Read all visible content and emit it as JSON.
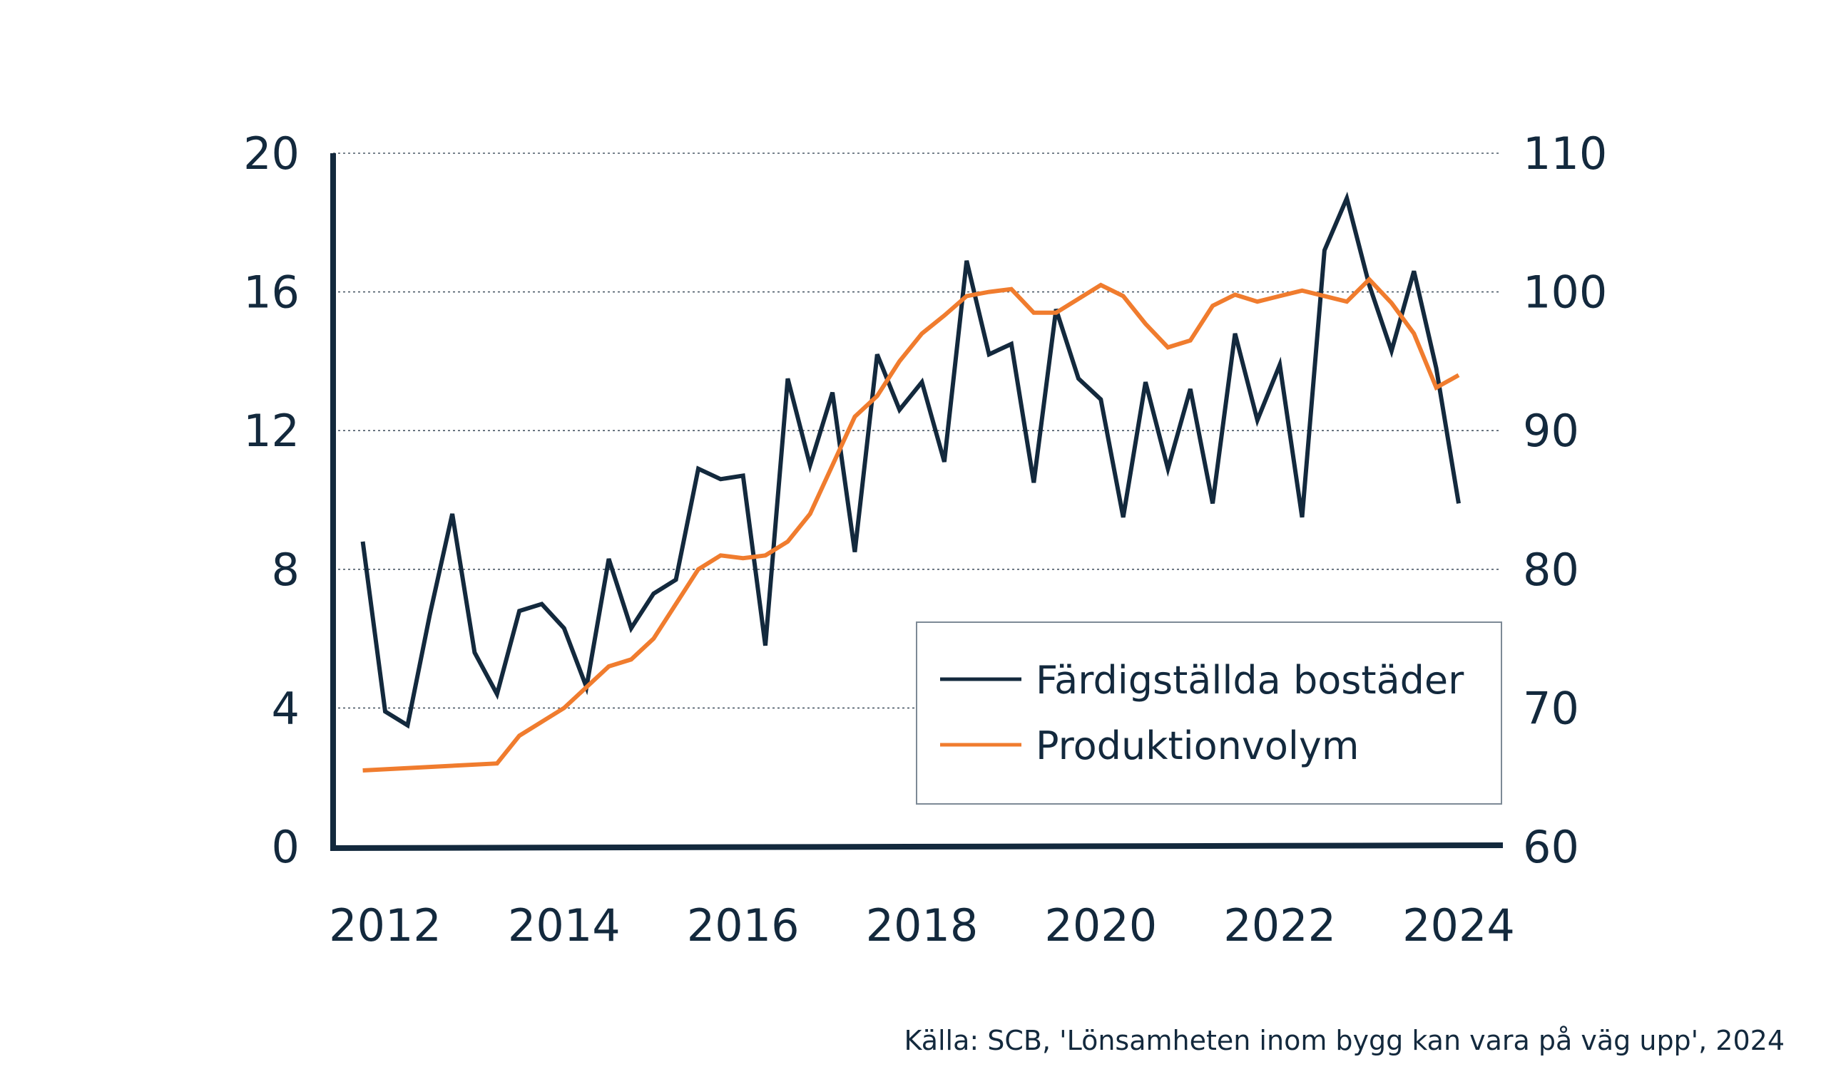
{
  "chart_data": {
    "type": "line",
    "x_ticks": [
      "2012",
      "2014",
      "2016",
      "2018",
      "2020",
      "2022",
      "2024"
    ],
    "y_left": {
      "min": 0,
      "max": 20,
      "ticks": [
        "0",
        "4",
        "8",
        "12",
        "16",
        "20"
      ]
    },
    "y_right": {
      "min": 60,
      "max": 110,
      "ticks": [
        "60",
        "70",
        "80",
        "90",
        "100",
        "110"
      ]
    },
    "grid": "horizontal-dotted",
    "legend_position": "bottom-right",
    "series": [
      {
        "name": "Färdigställda bostäder",
        "axis": "left",
        "color": "#13293d",
        "points": [
          [
            2011.75,
            8.8
          ],
          [
            2012.0,
            3.9
          ],
          [
            2012.25,
            3.5
          ],
          [
            2012.5,
            6.7
          ],
          [
            2012.75,
            9.6
          ],
          [
            2013.0,
            5.6
          ],
          [
            2013.25,
            4.4
          ],
          [
            2013.5,
            6.8
          ],
          [
            2013.75,
            7.0
          ],
          [
            2014.0,
            6.3
          ],
          [
            2014.25,
            4.6
          ],
          [
            2014.5,
            8.3
          ],
          [
            2014.75,
            6.3
          ],
          [
            2015.0,
            7.3
          ],
          [
            2015.25,
            7.7
          ],
          [
            2015.5,
            10.9
          ],
          [
            2015.75,
            10.6
          ],
          [
            2016.0,
            10.7
          ],
          [
            2016.25,
            5.8
          ],
          [
            2016.5,
            13.5
          ],
          [
            2016.75,
            11.0
          ],
          [
            2017.0,
            13.1
          ],
          [
            2017.25,
            8.5
          ],
          [
            2017.5,
            14.2
          ],
          [
            2017.75,
            12.6
          ],
          [
            2018.0,
            13.4
          ],
          [
            2018.25,
            11.1
          ],
          [
            2018.5,
            16.9
          ],
          [
            2018.75,
            14.2
          ],
          [
            2019.0,
            14.5
          ],
          [
            2019.25,
            10.5
          ],
          [
            2019.5,
            15.5
          ],
          [
            2019.75,
            13.5
          ],
          [
            2020.0,
            12.9
          ],
          [
            2020.25,
            9.5
          ],
          [
            2020.5,
            13.4
          ],
          [
            2020.75,
            10.9
          ],
          [
            2021.0,
            13.2
          ],
          [
            2021.25,
            9.9
          ],
          [
            2021.5,
            14.8
          ],
          [
            2021.75,
            12.3
          ],
          [
            2022.0,
            13.9
          ],
          [
            2022.25,
            9.5
          ],
          [
            2022.5,
            17.2
          ],
          [
            2022.75,
            18.7
          ],
          [
            2023.0,
            16.2
          ],
          [
            2023.25,
            14.3
          ],
          [
            2023.5,
            16.6
          ],
          [
            2023.75,
            13.8
          ],
          [
            2024.0,
            9.9
          ]
        ]
      },
      {
        "name": "Produktionvolym",
        "axis": "right",
        "color": "#f07c2e",
        "points": [
          [
            2011.75,
            65.5
          ],
          [
            2013.25,
            66.0
          ],
          [
            2013.5,
            68.0
          ],
          [
            2014.0,
            70.0
          ],
          [
            2014.25,
            71.5
          ],
          [
            2014.5,
            73.0
          ],
          [
            2014.75,
            73.5
          ],
          [
            2015.0,
            75.0
          ],
          [
            2015.25,
            77.5
          ],
          [
            2015.5,
            80.0
          ],
          [
            2015.75,
            81.0
          ],
          [
            2016.0,
            80.8
          ],
          [
            2016.25,
            81.0
          ],
          [
            2016.5,
            82.0
          ],
          [
            2016.75,
            84.0
          ],
          [
            2017.0,
            87.5
          ],
          [
            2017.25,
            91.0
          ],
          [
            2017.5,
            92.5
          ],
          [
            2017.75,
            95.0
          ],
          [
            2018.0,
            97.0
          ],
          [
            2018.25,
            98.3
          ],
          [
            2018.5,
            99.7
          ],
          [
            2018.75,
            100.0
          ],
          [
            2019.0,
            100.2
          ],
          [
            2019.25,
            98.5
          ],
          [
            2019.5,
            98.5
          ],
          [
            2019.75,
            99.5
          ],
          [
            2020.0,
            100.5
          ],
          [
            2020.25,
            99.7
          ],
          [
            2020.5,
            97.7
          ],
          [
            2020.75,
            96.0
          ],
          [
            2021.0,
            96.5
          ],
          [
            2021.25,
            99.0
          ],
          [
            2021.5,
            99.8
          ],
          [
            2021.75,
            99.3
          ],
          [
            2022.0,
            99.7
          ],
          [
            2022.25,
            100.1
          ],
          [
            2022.5,
            99.7
          ],
          [
            2022.75,
            99.3
          ],
          [
            2023.0,
            100.9
          ],
          [
            2023.25,
            99.2
          ],
          [
            2023.5,
            97.0
          ],
          [
            2023.75,
            93.1
          ],
          [
            2024.0,
            94.0
          ]
        ]
      }
    ]
  },
  "source_text": "Källa: SCB, 'Lönsamheten inom bygg kan vara på väg upp', 2024"
}
